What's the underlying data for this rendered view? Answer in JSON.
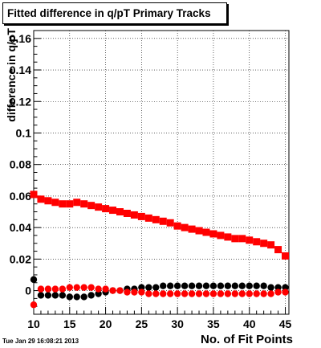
{
  "title": "Fitted difference in q/pT Primary Tracks",
  "timestamp": "Tue Jan 29 16:08:21 2013",
  "chart_data": {
    "type": "scatter",
    "title": "Fitted difference in q/pT Primary Tracks",
    "xlabel": "No. of Fit Points",
    "ylabel": "difference in q/pT",
    "xlim": [
      10,
      45.5
    ],
    "ylim": [
      -0.015,
      0.165
    ],
    "xticks": [
      10,
      15,
      20,
      25,
      30,
      35,
      40,
      45
    ],
    "yticks": [
      0,
      0.02,
      0.04,
      0.06,
      0.08,
      0.1,
      0.12,
      0.14,
      0.16
    ],
    "ytick_labels": [
      "0",
      "0.02",
      "0.04",
      "0.06",
      "0.08",
      "0.1",
      "0.12",
      "0.14",
      "0.16"
    ],
    "grid": true,
    "x": [
      10,
      11,
      12,
      13,
      14,
      15,
      16,
      17,
      18,
      19,
      20,
      21,
      22,
      23,
      24,
      25,
      26,
      27,
      28,
      29,
      30,
      31,
      32,
      33,
      34,
      35,
      36,
      37,
      38,
      39,
      40,
      41,
      42,
      43,
      44,
      45
    ],
    "series": [
      {
        "marker": "square",
        "color": "#ff0000",
        "values": [
          0.061,
          0.058,
          0.057,
          0.056,
          0.055,
          0.055,
          0.056,
          0.055,
          0.054,
          0.053,
          0.052,
          0.051,
          0.05,
          0.049,
          0.048,
          0.047,
          0.046,
          0.045,
          0.044,
          0.043,
          0.041,
          0.04,
          0.039,
          0.038,
          0.037,
          0.036,
          0.035,
          0.034,
          0.033,
          0.033,
          0.032,
          0.031,
          0.03,
          0.029,
          0.026,
          0.022
        ]
      },
      {
        "marker": "circle",
        "color": "#000000",
        "values": [
          0.007,
          -0.003,
          -0.003,
          -0.003,
          -0.003,
          -0.004,
          -0.004,
          -0.004,
          -0.003,
          -0.002,
          -0.001,
          0.0,
          0.0,
          0.001,
          0.001,
          0.002,
          0.002,
          0.002,
          0.003,
          0.003,
          0.003,
          0.003,
          0.003,
          0.003,
          0.003,
          0.003,
          0.003,
          0.003,
          0.003,
          0.003,
          0.003,
          0.003,
          0.003,
          0.002,
          0.002,
          0.002
        ]
      },
      {
        "marker": "circle",
        "color": "#ff0000",
        "values": [
          -0.009,
          0.001,
          0.001,
          0.001,
          0.001,
          0.002,
          0.002,
          0.002,
          0.002,
          0.001,
          0.001,
          0.0,
          0.0,
          -0.001,
          -0.001,
          -0.001,
          -0.002,
          -0.002,
          -0.002,
          -0.002,
          -0.002,
          -0.002,
          -0.002,
          -0.002,
          -0.002,
          -0.002,
          -0.002,
          -0.002,
          -0.002,
          -0.002,
          -0.002,
          -0.002,
          -0.002,
          -0.002,
          -0.001,
          -0.001
        ]
      }
    ]
  }
}
